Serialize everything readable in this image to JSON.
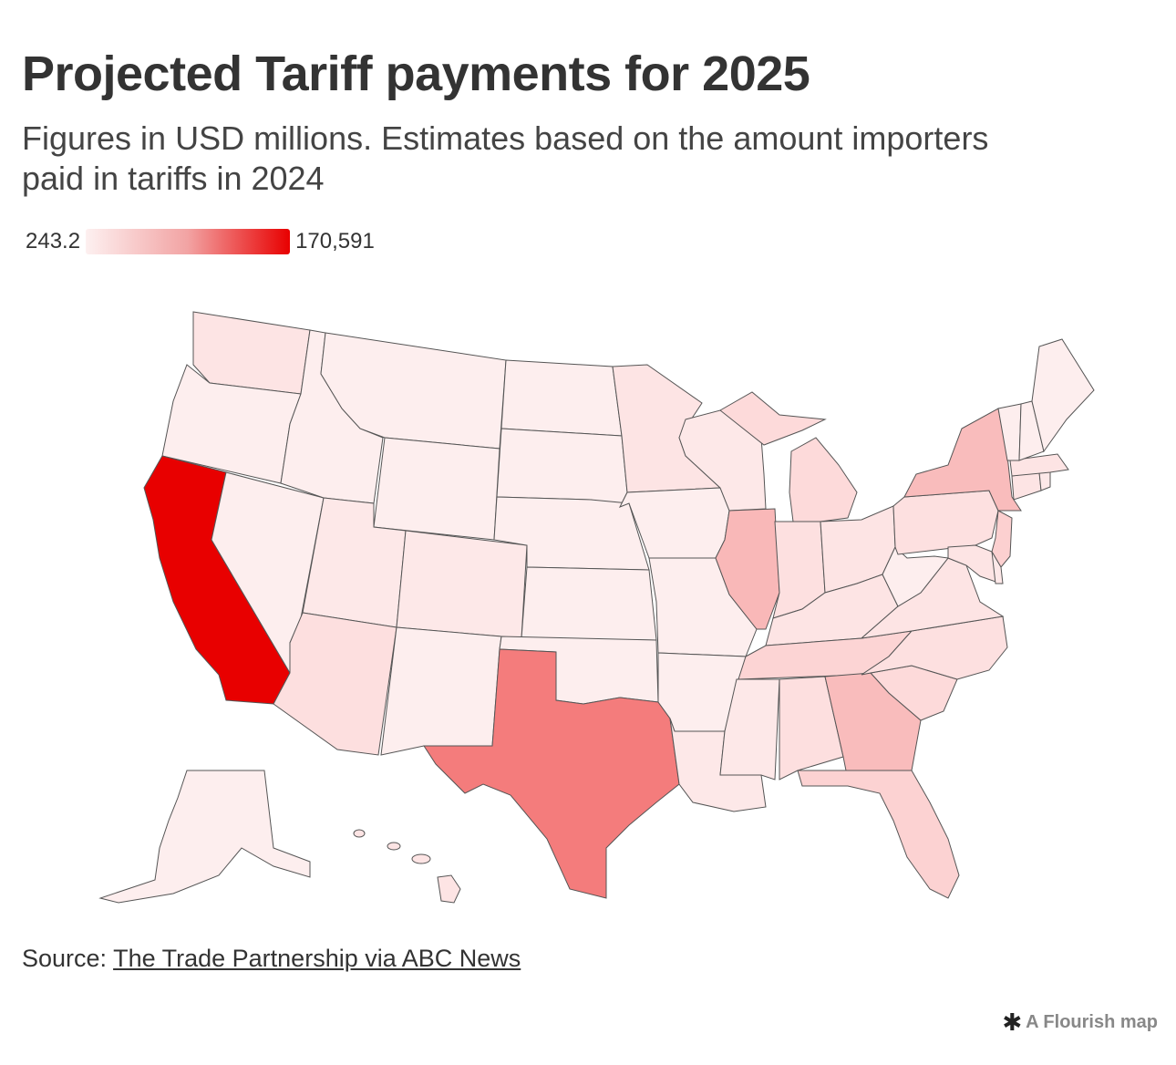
{
  "header": {
    "title": "Projected Tariff payments for 2025",
    "subtitle": "Figures in USD millions. Estimates based on the amount importers paid in tariffs in 2024"
  },
  "legend": {
    "min_label": "243.2",
    "max_label": "170,591",
    "min_color": "#fdf0f0",
    "max_color": "#e80000"
  },
  "map": {
    "color_scale": {
      "low": "#fdf0f0",
      "mid": "#f2a3a3",
      "high": "#e80000"
    },
    "stroke_color": "#555555"
  },
  "footer": {
    "source_prefix": "Source: ",
    "source_link": "The Trade Partnership via ABC News",
    "credit": "A Flourish map",
    "credit_icon": "asterisk-icon"
  }
}
